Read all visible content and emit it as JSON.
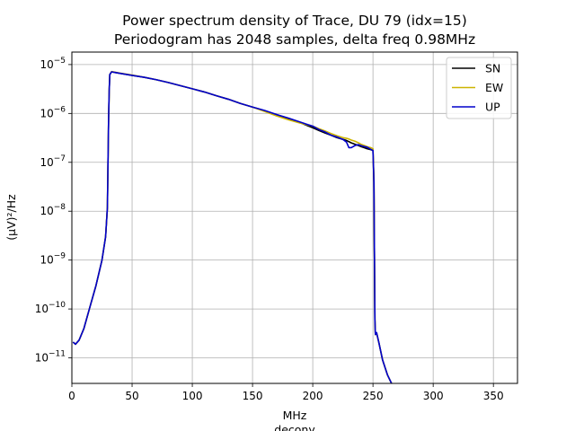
{
  "title_line1": "Power spectrum density of Trace, DU 79 (idx=15)",
  "title_line2": "Periodogram has 2048 samples, delta freq 0.98MHz",
  "chart_data": {
    "type": "line",
    "xlabel": "MHz",
    "xlabel2": "decony",
    "ylabel": "(μV)²/Hz",
    "yscale": "log",
    "xlim": [
      0,
      370
    ],
    "ylim": [
      3e-12,
      1.8e-05
    ],
    "xticks": [
      0,
      50,
      100,
      150,
      200,
      250,
      300,
      350
    ],
    "yticks": [
      {
        "value": 1e-11,
        "base": "10",
        "exp": "−11"
      },
      {
        "value": 1e-10,
        "base": "10",
        "exp": "−10"
      },
      {
        "value": 1e-09,
        "base": "10",
        "exp": "−9"
      },
      {
        "value": 1e-08,
        "base": "10",
        "exp": "−8"
      },
      {
        "value": 1e-07,
        "base": "10",
        "exp": "−7"
      },
      {
        "value": 1e-06,
        "base": "10",
        "exp": "−6"
      },
      {
        "value": 1e-05,
        "base": "10",
        "exp": "−5"
      }
    ],
    "grid": true,
    "legend_position": "top-right",
    "series": [
      {
        "name": "SN",
        "color": "#000000",
        "x": [
          1,
          3,
          6,
          10,
          15,
          20,
          25,
          28,
          29.5,
          30,
          30.5,
          31,
          31.5,
          33,
          40,
          50,
          60,
          70,
          80,
          90,
          100,
          110,
          120,
          130,
          140,
          150,
          160,
          170,
          180,
          190,
          195,
          200,
          205,
          210,
          215,
          220,
          225,
          228,
          230,
          232,
          235,
          238,
          240,
          243,
          245,
          248,
          250,
          250.8,
          251.2,
          251.6,
          252,
          253,
          255,
          258,
          262,
          266
        ],
        "y": [
          2.1e-11,
          1.9e-11,
          2.3e-11,
          4e-11,
          1.1e-10,
          3e-10,
          1e-09,
          3e-09,
          1.2e-08,
          1e-07,
          8e-07,
          3e-06,
          6.2e-06,
          7.1e-06,
          6.6e-06,
          6e-06,
          5.5e-06,
          4.9e-06,
          4.3e-06,
          3.7e-06,
          3.2e-06,
          2.75e-06,
          2.3e-06,
          1.95e-06,
          1.6e-06,
          1.35e-06,
          1.13e-06,
          9.3e-07,
          7.8e-07,
          6.4e-07,
          5.7e-07,
          5.1e-07,
          4.5e-07,
          4e-07,
          3.6e-07,
          3.2e-07,
          2.95e-07,
          2.8e-07,
          2.65e-07,
          2.5e-07,
          2.35e-07,
          2.2e-07,
          2.1e-07,
          1.98e-07,
          1.9e-07,
          1.82e-07,
          1.75e-07,
          4e-08,
          1.5e-09,
          6e-11,
          3e-11,
          3.2e-11,
          2e-11,
          9e-12,
          4.5e-12,
          2.8e-12
        ]
      },
      {
        "name": "EW",
        "color": "#cdb400",
        "x": [
          1,
          3,
          6,
          10,
          15,
          20,
          25,
          28,
          29.5,
          30,
          30.5,
          31,
          31.5,
          33,
          40,
          50,
          60,
          70,
          80,
          90,
          100,
          110,
          120,
          130,
          140,
          150,
          160,
          170,
          180,
          190,
          195,
          200,
          205,
          210,
          215,
          220,
          225,
          228,
          230,
          232,
          235,
          238,
          240,
          243,
          245,
          248,
          250,
          250.8,
          251.2,
          251.6,
          252,
          253,
          255,
          258,
          262,
          266
        ],
        "y": [
          2.1e-11,
          1.9e-11,
          2.3e-11,
          4e-11,
          1.1e-10,
          3e-10,
          1e-09,
          3e-09,
          1.2e-08,
          1e-07,
          8e-07,
          3e-06,
          6.3e-06,
          7.2e-06,
          6.7e-06,
          6.1e-06,
          5.5e-06,
          4.9e-06,
          4.3e-06,
          3.7e-06,
          3.2e-06,
          2.75e-06,
          2.3e-06,
          1.95e-06,
          1.6e-06,
          1.35e-06,
          1.1e-06,
          8.9e-07,
          7.4e-07,
          6.3e-07,
          5.9e-07,
          5.5e-07,
          4.9e-07,
          4.4e-07,
          3.9e-07,
          3.5e-07,
          3.2e-07,
          3.1e-07,
          3e-07,
          2.85e-07,
          2.7e-07,
          2.5e-07,
          2.35e-07,
          2.2e-07,
          2.1e-07,
          2e-07,
          1.9e-07,
          4.5e-08,
          1.5e-09,
          6e-11,
          3e-11,
          3.2e-11,
          2e-11,
          9e-12,
          4.5e-12,
          2.8e-12
        ]
      },
      {
        "name": "UP",
        "color": "#0000cc",
        "x": [
          1,
          3,
          6,
          10,
          15,
          20,
          25,
          28,
          29.5,
          30,
          30.5,
          31,
          31.5,
          33,
          40,
          50,
          60,
          70,
          80,
          90,
          100,
          110,
          120,
          130,
          140,
          150,
          160,
          170,
          180,
          190,
          195,
          200,
          205,
          210,
          215,
          220,
          225,
          228,
          230,
          232,
          235,
          238,
          240,
          243,
          245,
          248,
          250,
          250.8,
          251.2,
          251.6,
          252,
          253,
          255,
          258,
          262,
          266
        ],
        "y": [
          2.1e-11,
          1.9e-11,
          2.3e-11,
          4e-11,
          1.1e-10,
          3e-10,
          1e-09,
          3e-09,
          1.2e-08,
          1e-07,
          8e-07,
          3e-06,
          6.3e-06,
          7.1e-06,
          6.6e-06,
          6e-06,
          5.5e-06,
          4.9e-06,
          4.3e-06,
          3.7e-06,
          3.2e-06,
          2.75e-06,
          2.3e-06,
          1.95e-06,
          1.6e-06,
          1.35e-06,
          1.15e-06,
          9.5e-07,
          8e-07,
          6.6e-07,
          6e-07,
          5.5e-07,
          4.7e-07,
          4.2e-07,
          3.6e-07,
          3.3e-07,
          2.95e-07,
          2.6e-07,
          2e-07,
          2e-07,
          2.2e-07,
          2.3e-07,
          2.2e-07,
          2.1e-07,
          2.05e-07,
          1.85e-07,
          1.75e-07,
          4e-08,
          1.5e-09,
          6e-11,
          3e-11,
          3.3e-11,
          2e-11,
          9e-12,
          4.5e-12,
          2.8e-12
        ]
      }
    ]
  }
}
